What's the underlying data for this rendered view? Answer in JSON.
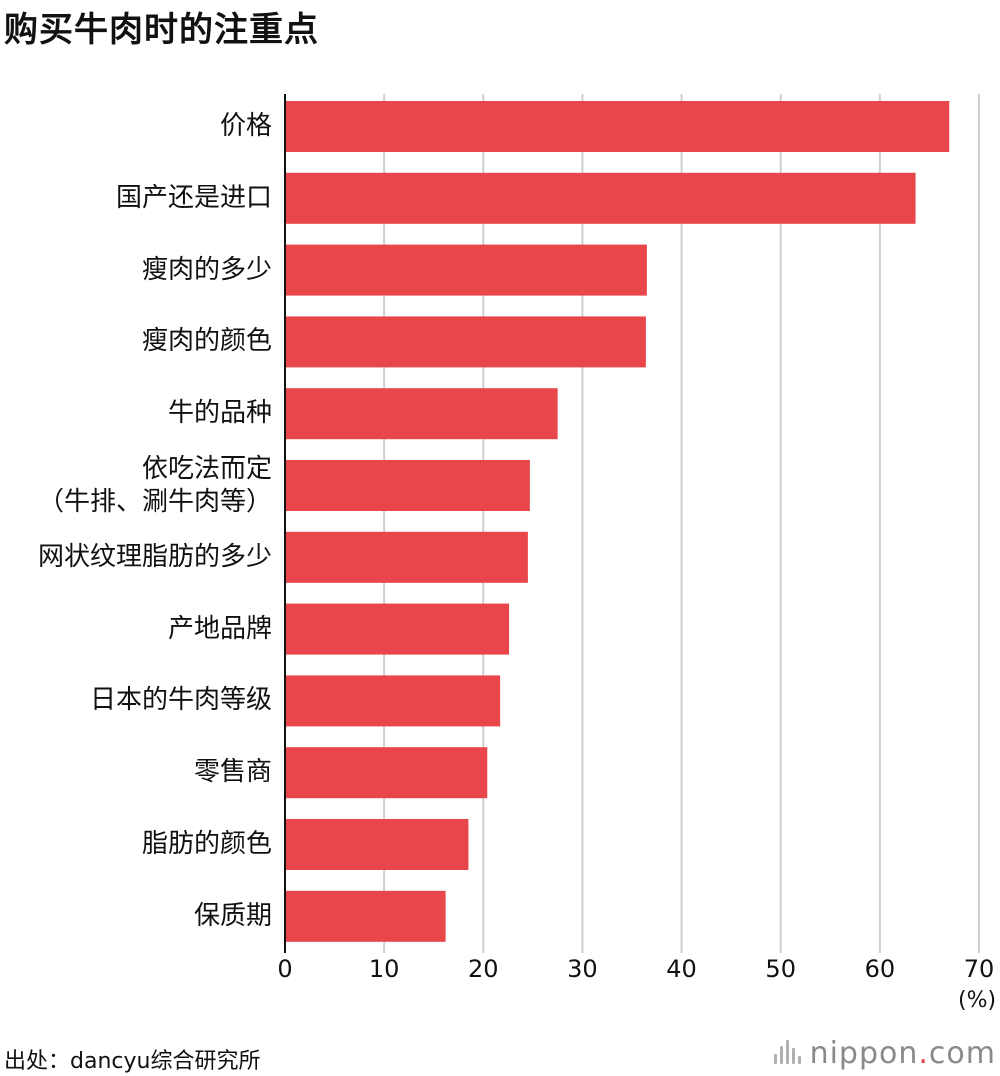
{
  "title": "购买牛肉时的注重点",
  "source": "出处：dancyu综合研究所",
  "brand": {
    "name": "nippon",
    "dot": ".",
    "tld": "com",
    "mark_icon": "sound-wave-icon"
  },
  "colors": {
    "bar": "#e8464b",
    "grid": "#cfcfcf",
    "axis": "#111111"
  },
  "chart_data": {
    "type": "bar",
    "orientation": "horizontal",
    "categories": [
      "价格",
      "国产还是进口",
      "瘦肉的多少",
      "瘦肉的颜色",
      "牛的品种",
      "依吃法而定\n（牛排、涮牛肉等）",
      "网状纹理脂肪的多少",
      "产地品牌",
      "日本的牛肉等级",
      "零售商",
      "脂肪的颜色",
      "保质期"
    ],
    "values": [
      67.0,
      63.6,
      36.5,
      36.4,
      27.5,
      24.7,
      24.5,
      22.6,
      21.7,
      20.4,
      18.5,
      16.2
    ],
    "xlim": [
      0,
      70
    ],
    "xticks": [
      "0",
      "10",
      "20",
      "30",
      "40",
      "50",
      "60",
      "70"
    ],
    "unit": "(%)",
    "grid": true,
    "title": "购买牛肉时的注重点"
  }
}
